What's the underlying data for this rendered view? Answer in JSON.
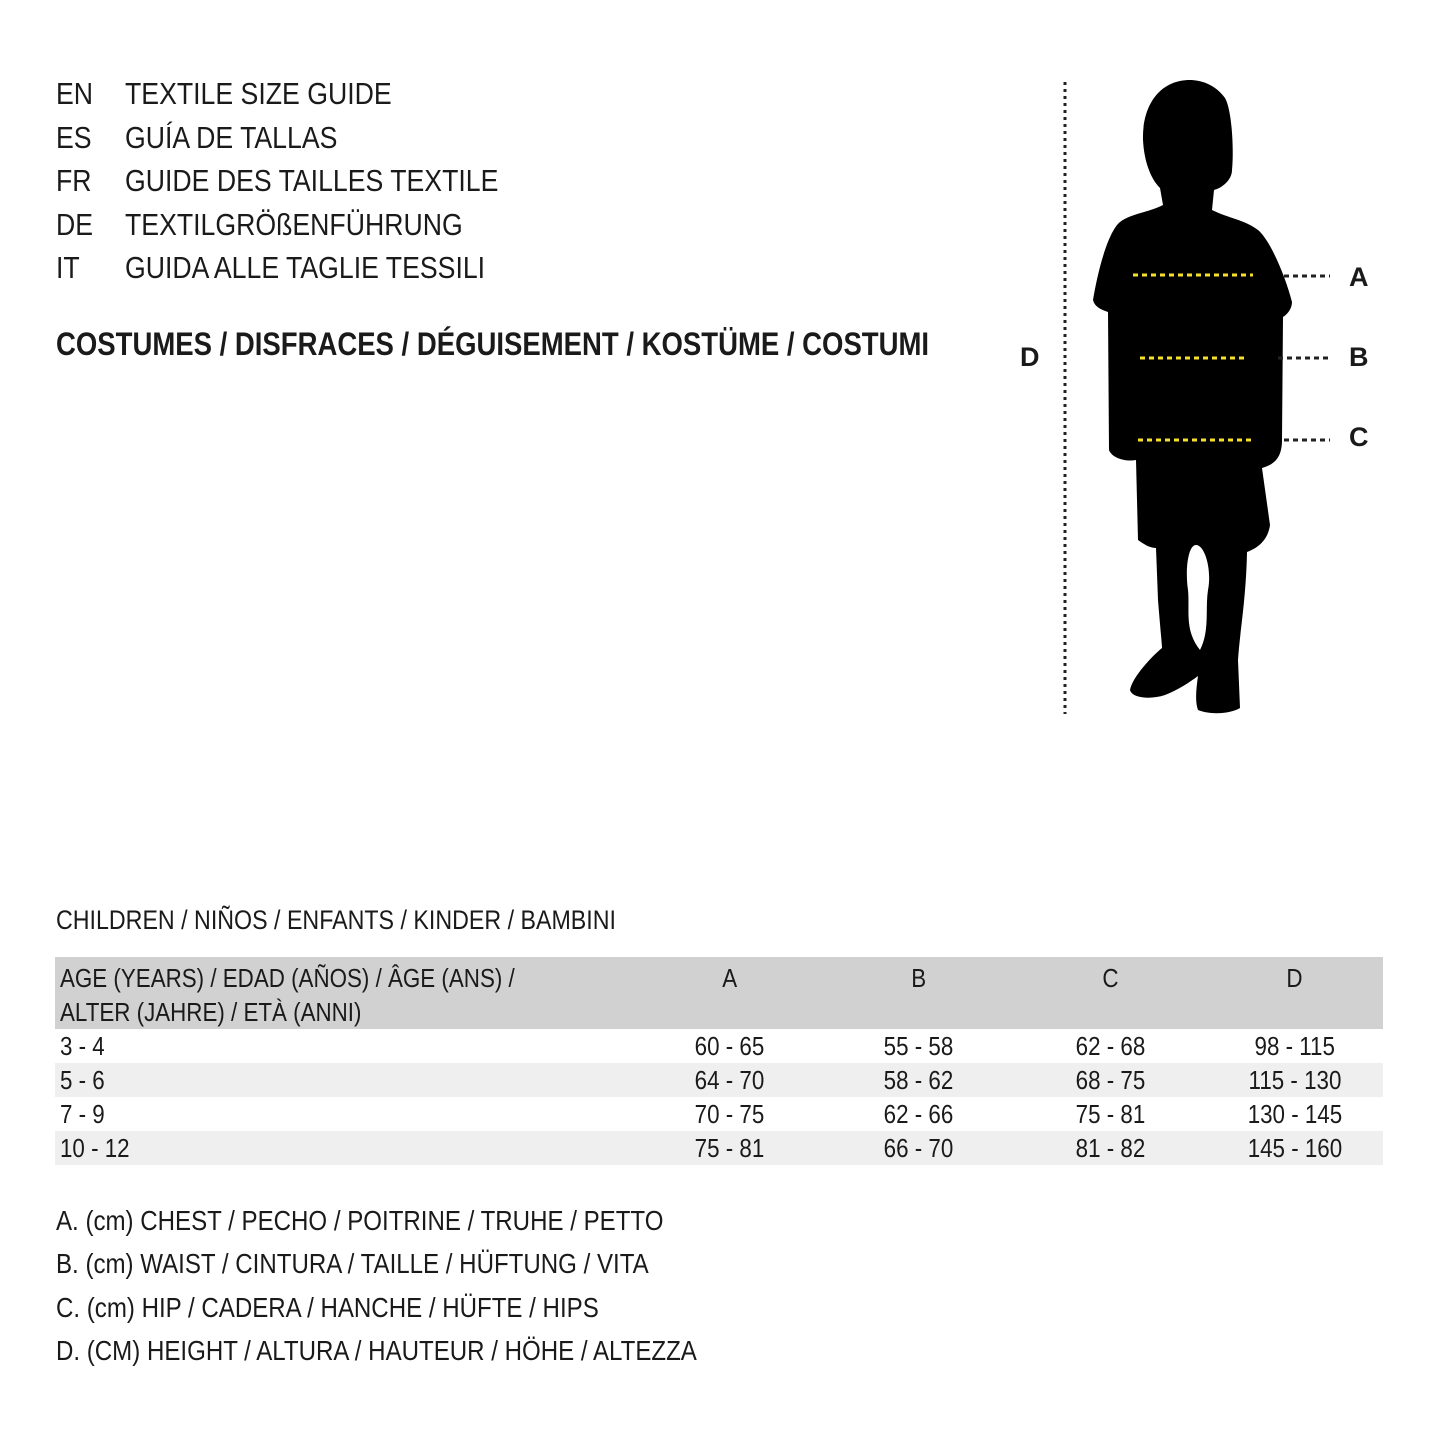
{
  "titles": [
    {
      "lang": "EN",
      "text": "TEXTILE SIZE GUIDE"
    },
    {
      "lang": "ES",
      "text": "GUÍA DE TALLAS"
    },
    {
      "lang": "FR",
      "text": "GUIDE DES TAILLES TEXTILE"
    },
    {
      "lang": "DE",
      "text": "TEXTILGRÖßENFÜHRUNG"
    },
    {
      "lang": "IT",
      "text": "GUIDA ALLE TAGLIE TESSILI"
    }
  ],
  "category": "COSTUMES / DISFRACES / DÉGUISEMENT / KOSTÜME / COSTUMI",
  "figure": {
    "labels": {
      "A": "A",
      "B": "B",
      "C": "C",
      "D": "D"
    },
    "fill": "#000000",
    "measure_line_color": "#f5e12b"
  },
  "section": "CHILDREN / NIÑOS / ENFANTS / KINDER / BAMBINI",
  "table": {
    "header": {
      "age_line1": "AGE (YEARS) / EDAD (AÑOS) / ÂGE (ANS) /",
      "age_line2": "ALTER (JAHRE) / ETÀ (ANNI)",
      "cols": [
        "A",
        "B",
        "C",
        "D"
      ]
    },
    "rows": [
      [
        "3 - 4",
        "60 - 65",
        "55 - 58",
        "62 - 68",
        "98 - 115"
      ],
      [
        "5 - 6",
        "64 - 70",
        "58 - 62",
        "68 - 75",
        "115 - 130"
      ],
      [
        "7 - 9",
        "70 - 75",
        "62 - 66",
        "75 - 81",
        "130 - 145"
      ],
      [
        "10 - 12",
        "75 - 81",
        "66 - 70",
        "81 - 82",
        "145 - 160"
      ]
    ]
  },
  "legend": [
    "A. (cm) CHEST / PECHO / POITRINE / TRUHE / PETTO",
    "B. (cm) WAIST / CINTURA / TAILLE / HÜFTUNG / VITA",
    "C. (cm) HIP / CADERA / HANCHE / HÜFTE / HIPS",
    "D. (CM) HEIGHT / ALTURA / HAUTEUR / HÖHE / ALTEZZA"
  ]
}
